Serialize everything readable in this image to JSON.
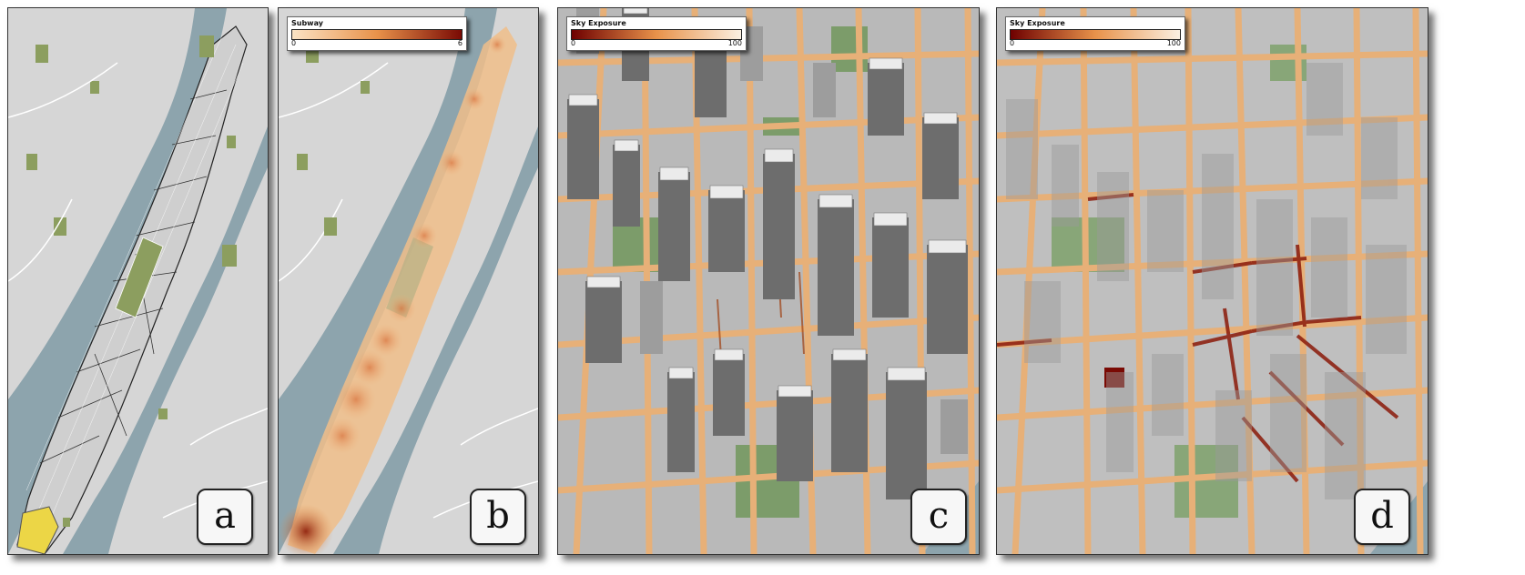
{
  "panels": [
    {
      "letter": "a"
    },
    {
      "letter": "b",
      "legend": {
        "title": "Subway",
        "min": "0",
        "max": "6",
        "colors": [
          "#fbe3c4",
          "#e8924a",
          "#7a0a04"
        ]
      }
    },
    {
      "letter": "c",
      "legend": {
        "title": "Sky Exposure",
        "min": "0",
        "max": "100",
        "colors": [
          "#6e0000",
          "#e8924a",
          "#fbf0e2"
        ]
      }
    },
    {
      "letter": "d",
      "legend": {
        "title": "Sky Exposure",
        "min": "0",
        "max": "100",
        "colors": [
          "#6e0000",
          "#e8924a",
          "#fbf0e2"
        ]
      }
    }
  ],
  "colors": {
    "water": "#8da4ad",
    "land": "#d4d4d4",
    "park": "#8c9e5f",
    "highlight": "#ecd646",
    "street_heat": "#e7b078"
  }
}
